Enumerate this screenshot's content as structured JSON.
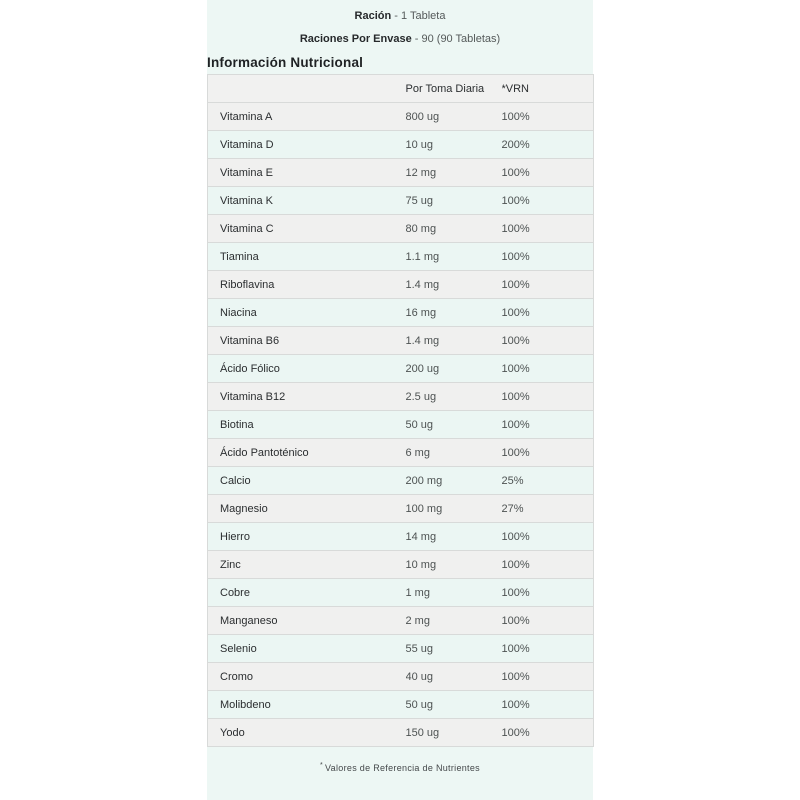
{
  "page": {
    "serving_line1": {
      "bold": "Ración",
      "rest": "- 1 Tableta"
    },
    "serving_line2": {
      "bold": "Raciones Por Envase",
      "rest": "- 90 (90 Tabletas)"
    },
    "section_title": "Información Nutricional",
    "footnote_symbol": "*",
    "footnote_text": "Valores de Referencia de Nutrientes"
  },
  "table": {
    "headers": [
      "",
      "Por Toma Diaria",
      "*VRN"
    ],
    "rows": [
      {
        "name": "Vitamina A",
        "amount": "800 ug",
        "vrn": "100%"
      },
      {
        "name": "Vitamina D",
        "amount": "10 ug",
        "vrn": "200%"
      },
      {
        "name": "Vitamina E",
        "amount": "12 mg",
        "vrn": "100%"
      },
      {
        "name": "Vitamina K",
        "amount": "75 ug",
        "vrn": "100%"
      },
      {
        "name": "Vitamina C",
        "amount": "80 mg",
        "vrn": "100%"
      },
      {
        "name": "Tiamina",
        "amount": "1.1 mg",
        "vrn": "100%"
      },
      {
        "name": "Riboflavina",
        "amount": "1.4 mg",
        "vrn": "100%"
      },
      {
        "name": "Niacina",
        "amount": "16 mg",
        "vrn": "100%"
      },
      {
        "name": "Vitamina B6",
        "amount": "1.4 mg",
        "vrn": "100%"
      },
      {
        "name": "Ácido Fólico",
        "amount": "200 ug",
        "vrn": "100%"
      },
      {
        "name": "Vitamina B12",
        "amount": "2.5 ug",
        "vrn": "100%"
      },
      {
        "name": "Biotina",
        "amount": "50 ug",
        "vrn": "100%"
      },
      {
        "name": "Ácido Pantoténico",
        "amount": "6 mg",
        "vrn": "100%"
      },
      {
        "name": "Calcio",
        "amount": "200 mg",
        "vrn": "25%"
      },
      {
        "name": "Magnesio",
        "amount": "100 mg",
        "vrn": "27%"
      },
      {
        "name": "Hierro",
        "amount": "14 mg",
        "vrn": "100%"
      },
      {
        "name": "Zinc",
        "amount": "10 mg",
        "vrn": "100%"
      },
      {
        "name": "Cobre",
        "amount": "1 mg",
        "vrn": "100%"
      },
      {
        "name": "Manganeso",
        "amount": "2 mg",
        "vrn": "100%"
      },
      {
        "name": "Selenio",
        "amount": "55 ug",
        "vrn": "100%"
      },
      {
        "name": "Cromo",
        "amount": "40 ug",
        "vrn": "100%"
      },
      {
        "name": "Molibdeno",
        "amount": "50 ug",
        "vrn": "100%"
      },
      {
        "name": "Yodo",
        "amount": "150 ug",
        "vrn": "100%"
      }
    ]
  },
  "colors": {
    "page_background": "#ffffff",
    "content_background": "#edf7f4",
    "row_gray": "#f0f0ef",
    "row_mint": "#ebf6f3",
    "header_row": "#f1f1f0",
    "border": "#d8dad9",
    "text_dark": "#2b2e30",
    "text_muted": "#4d5252"
  }
}
